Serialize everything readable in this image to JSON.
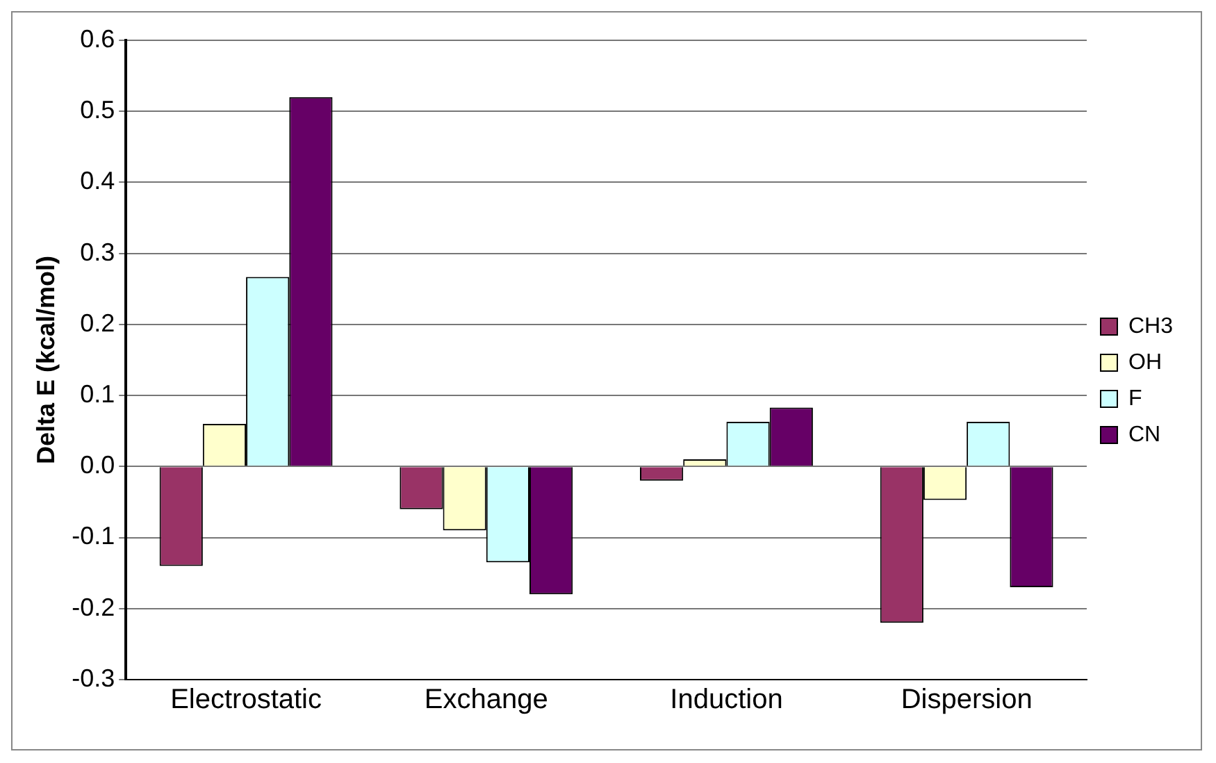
{
  "chart_data": {
    "type": "bar",
    "ylabel": "Delta E (kcal/mol)",
    "categories": [
      "Electrostatic",
      "Exchange",
      "Induction",
      "Dispersion"
    ],
    "series": [
      {
        "name": "CH3",
        "color": "#993366",
        "values": [
          -0.14,
          -0.06,
          -0.02,
          -0.22
        ]
      },
      {
        "name": "OH",
        "color": "#ffffcc",
        "values": [
          0.06,
          -0.09,
          0.01,
          -0.047
        ]
      },
      {
        "name": "F",
        "color": "#ccffff",
        "values": [
          0.267,
          -0.135,
          0.063,
          0.063
        ]
      },
      {
        "name": "CN",
        "color": "#660066",
        "values": [
          0.52,
          -0.18,
          0.083,
          -0.17
        ]
      }
    ],
    "ylim": [
      -0.3,
      0.6
    ],
    "yticks": [
      {
        "value": -0.3,
        "label": "-0.3"
      },
      {
        "value": -0.2,
        "label": "-0.2"
      },
      {
        "value": -0.1,
        "label": "-0.1"
      },
      {
        "value": 0,
        "label": "0.0"
      },
      {
        "value": 0.1,
        "label": "0.1"
      },
      {
        "value": 0.2,
        "label": "0.2"
      },
      {
        "value": 0.3,
        "label": "0.3"
      },
      {
        "value": 0.4,
        "label": "0.4"
      },
      {
        "value": 0.5,
        "label": "0.5"
      },
      {
        "value": 0.6,
        "label": "0.6"
      }
    ],
    "grid": "y",
    "legend": "right"
  }
}
